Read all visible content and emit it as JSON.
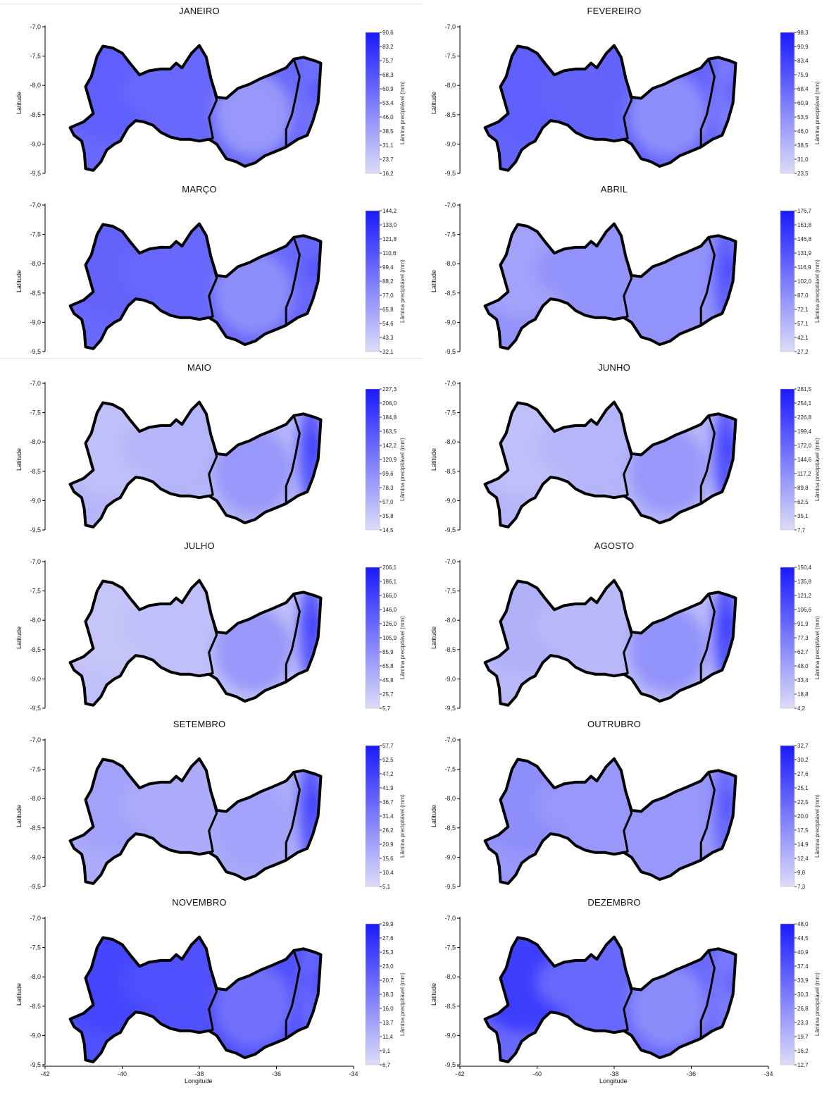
{
  "axis": {
    "y_label": "Latitude",
    "x_label": "Longitude",
    "y_ticks": [
      "-7,0",
      "-7,5",
      "-8,0",
      "-8,5",
      "-9,0",
      "-9,5"
    ],
    "x_ticks": [
      "-42",
      "-40",
      "-38",
      "-36",
      "-34"
    ],
    "colorbar_label": "Lâmina precipitável (mm)"
  },
  "colors": {
    "scale_high": "#1a1aff",
    "scale_low": "#dcdcf8",
    "outline": "#000000"
  },
  "maps": [
    {
      "title": "JANEIRO",
      "colorbar": [
        "90,6",
        "83,2",
        "75,7",
        "68,3",
        "60,9",
        "53,4",
        "46,0",
        "38,5",
        "31,1",
        "23,7",
        "16,2"
      ],
      "intensity": {
        "west": 0.65,
        "center": 0.6,
        "agreste": 0.35,
        "coast": 0.55
      }
    },
    {
      "title": "FEVEREIRO",
      "colorbar": [
        "98,3",
        "90,9",
        "83,4",
        "75,9",
        "68,4",
        "60,9",
        "53,5",
        "46,0",
        "38,5",
        "31,0",
        "23,5"
      ],
      "intensity": {
        "west": 0.65,
        "center": 0.62,
        "agreste": 0.4,
        "coast": 0.5
      }
    },
    {
      "title": "MARÇO",
      "colorbar": [
        "144,2",
        "133,0",
        "121,8",
        "110,6",
        "99,4",
        "88,2",
        "77,0",
        "65,8",
        "54,6",
        "43,3",
        "32,1"
      ],
      "intensity": {
        "west": 0.62,
        "center": 0.6,
        "agreste": 0.4,
        "coast": 0.6
      }
    },
    {
      "title": "ABRIL",
      "colorbar": [
        "176,7",
        "161,8",
        "146,8",
        "131,9",
        "116,9",
        "102,0",
        "87,0",
        "72,1",
        "57,1",
        "42,1",
        "27,2"
      ],
      "intensity": {
        "west": 0.3,
        "center": 0.38,
        "agreste": 0.38,
        "coast": 0.65
      }
    },
    {
      "title": "MAIO",
      "colorbar": [
        "227,3",
        "206,0",
        "184,8",
        "163,5",
        "142,2",
        "120,9",
        "99,6",
        "78,3",
        "57,0",
        "35,8",
        "14,5"
      ],
      "intensity": {
        "west": 0.15,
        "center": 0.2,
        "agreste": 0.35,
        "coast": 0.7
      }
    },
    {
      "title": "JUNHO",
      "colorbar": [
        "281,5",
        "254,1",
        "226,8",
        "199,4",
        "172,0",
        "144,6",
        "117,2",
        "89,8",
        "62,5",
        "35,1",
        "7,7"
      ],
      "intensity": {
        "west": 0.15,
        "center": 0.2,
        "agreste": 0.35,
        "coast": 0.7
      }
    },
    {
      "title": "JULHO",
      "colorbar": [
        "206,1",
        "186,1",
        "166,0",
        "146,0",
        "126,0",
        "105,9",
        "85,9",
        "65,8",
        "45,8",
        "25,7",
        "5,7"
      ],
      "intensity": {
        "west": 0.12,
        "center": 0.15,
        "agreste": 0.35,
        "coast": 0.7
      }
    },
    {
      "title": "AGOSTO",
      "colorbar": [
        "150,4",
        "135,8",
        "121,2",
        "106,6",
        "91,9",
        "77,3",
        "62,7",
        "48,0",
        "33,4",
        "18,8",
        "4,2"
      ],
      "intensity": {
        "west": 0.22,
        "center": 0.18,
        "agreste": 0.38,
        "coast": 0.72
      }
    },
    {
      "title": "SETEMBRO",
      "colorbar": [
        "57,7",
        "52,5",
        "47,2",
        "41,9",
        "36,7",
        "31,4",
        "26,2",
        "20,9",
        "15,6",
        "10,4",
        "5,1"
      ],
      "intensity": {
        "west": 0.3,
        "center": 0.25,
        "agreste": 0.3,
        "coast": 0.7
      }
    },
    {
      "title": "OUTRUBRO",
      "colorbar": [
        "32,7",
        "30,2",
        "27,6",
        "25,1",
        "22,5",
        "20,0",
        "17,5",
        "14,9",
        "12,4",
        "9,8",
        "7,3"
      ],
      "intensity": {
        "west": 0.4,
        "center": 0.35,
        "agreste": 0.35,
        "coast": 0.6
      }
    },
    {
      "title": "NOVEMBRO",
      "colorbar": [
        "29,9",
        "27,6",
        "25,3",
        "23,0",
        "20,7",
        "18,3",
        "16,0",
        "13,7",
        "11,4",
        "9,1",
        "6,7"
      ],
      "intensity": {
        "west": 0.78,
        "center": 0.72,
        "agreste": 0.55,
        "coast": 0.6
      }
    },
    {
      "title": "DEZEMBRO",
      "colorbar": [
        "48,0",
        "44,5",
        "40,9",
        "37,4",
        "33,9",
        "30,3",
        "26,8",
        "23,3",
        "19,7",
        "16,2",
        "12,7"
      ],
      "intensity": {
        "west": 0.82,
        "center": 0.6,
        "agreste": 0.42,
        "coast": 0.5
      }
    }
  ]
}
